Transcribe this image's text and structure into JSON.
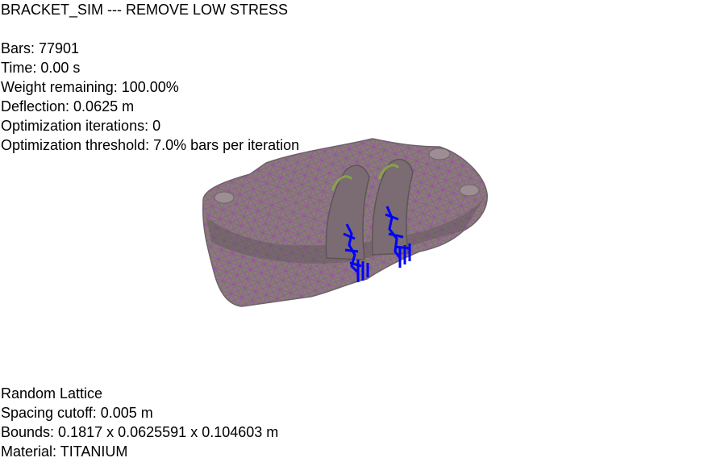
{
  "window": {
    "title": "BRACKET_SIM --- REMOVE LOW STRESS"
  },
  "stats": {
    "bars": "Bars: 77901",
    "time": "Time: 0.00 s",
    "weight_remaining": "Weight remaining: 100.00%",
    "deflection": "Deflection: 0.0625 m",
    "optimization_iterations": "Optimization iterations: 0",
    "optimization_threshold": "Optimization threshold: 7.0% bars per iteration"
  },
  "lattice_info": {
    "type": "Random Lattice",
    "spacing_cutoff": "Spacing cutoff: 0.005 m",
    "bounds": "Bounds: 0.1817 x 0.0625591 x 0.104603 m",
    "material": "Material: TITANIUM"
  },
  "colors": {
    "background": "#ffffff",
    "text": "#000000",
    "lattice_body": "#8a7a80",
    "lattice_edge": "#6e6268",
    "lattice_magenta": "#a040b0",
    "lattice_green": "#6e8a3a",
    "load_markers": "#0000ff"
  },
  "icons": {
    "model": "bracket-lattice-3d-model",
    "loads": "load-arrow-markers"
  }
}
